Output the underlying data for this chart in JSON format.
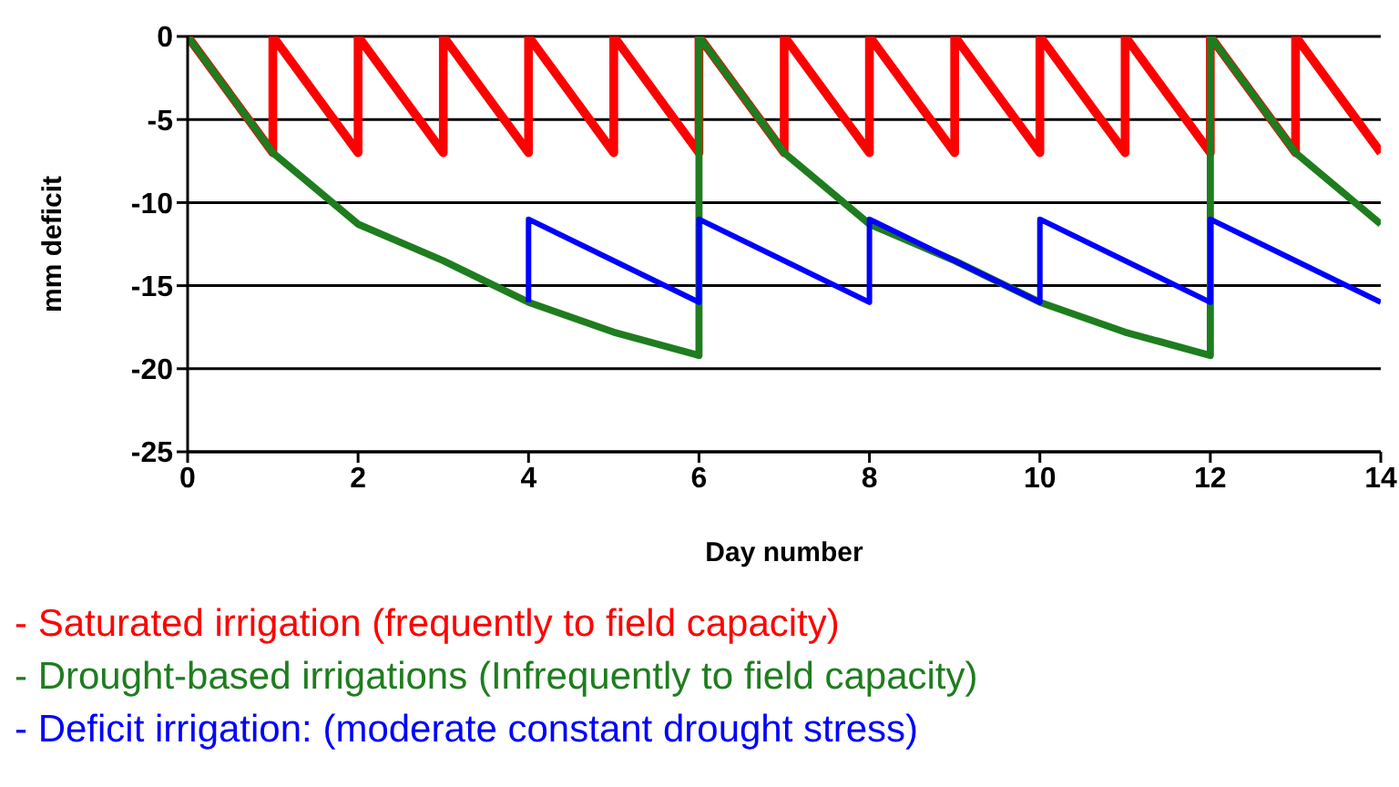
{
  "chart_data": {
    "type": "line",
    "xlabel": "Day number",
    "ylabel": "mm deficit",
    "xlim": [
      0,
      14
    ],
    "xticks": [
      0,
      2,
      4,
      6,
      8,
      10,
      12,
      14
    ],
    "ylim": [
      -25,
      0
    ],
    "yticks": [
      -25,
      -20,
      -15,
      -10,
      -5,
      0
    ],
    "grid": "y",
    "legend": "bottom",
    "marker": "none",
    "line_style": "solid",
    "series": [
      {
        "name": "- Saturated irrigation (frequently to field capacity)",
        "color": "#ff0000",
        "x": [
          0,
          1,
          1,
          2,
          2,
          3,
          3,
          4,
          4,
          5,
          5,
          6,
          6,
          7,
          7,
          8,
          8,
          9,
          9,
          10,
          10,
          11,
          11,
          12,
          12,
          13,
          13,
          14
        ],
        "values": [
          0,
          -7,
          0,
          -7,
          0,
          -7,
          0,
          -7,
          0,
          -7,
          0,
          -7,
          0,
          -7,
          0,
          -7,
          0,
          -7,
          0,
          -7,
          0,
          -7,
          0,
          -7,
          0,
          -7,
          0,
          -7
        ]
      },
      {
        "name": "- Drought-based irrigations (Infrequently to field capacity)",
        "color": "#1e7d1e",
        "x": [
          0,
          1,
          2,
          3,
          4,
          5,
          6,
          6,
          7,
          8,
          9,
          10,
          11,
          12,
          12,
          13,
          14
        ],
        "values": [
          0,
          -7,
          -11.3,
          -13.5,
          -16,
          -17.8,
          -19.2,
          0,
          -7,
          -11.3,
          -13.5,
          -16,
          -17.8,
          -19.2,
          0,
          -7,
          -11.3
        ]
      },
      {
        "name": "- Deficit irrigation: (moderate constant drought stress)",
        "color": "#0000ff",
        "x": [
          4,
          4,
          5,
          6,
          6,
          7,
          8,
          8,
          9,
          10,
          10,
          11,
          12,
          12,
          13,
          14
        ],
        "values": [
          -16,
          -11,
          -13.5,
          -16,
          -11,
          -13.5,
          -16,
          -11,
          -13.5,
          -16,
          -11,
          -13.5,
          -16,
          -11,
          -13.5,
          -16
        ]
      }
    ]
  }
}
